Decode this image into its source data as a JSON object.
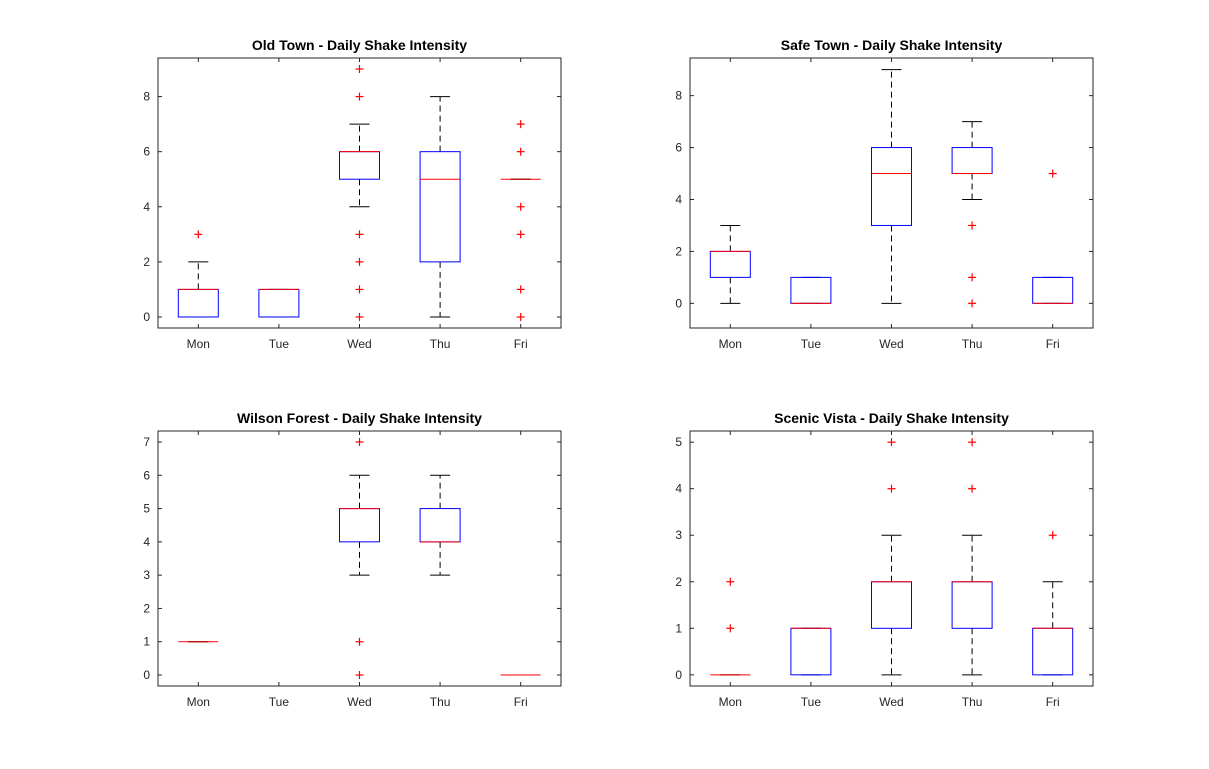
{
  "figure": {
    "colors": {
      "box": "#0000ff",
      "median": "#ff0000",
      "outlier": "#ff0000",
      "whisker": "#000000",
      "axes": "#262626",
      "background": "#ffffff"
    }
  },
  "chart_data": [
    {
      "type": "boxplot",
      "title": "Old Town - Daily Shake Intensity",
      "xlabel": "",
      "ylabel": "",
      "categories": [
        "Mon",
        "Tue",
        "Wed",
        "Thu",
        "Fri"
      ],
      "ylim": [
        -0.4,
        9.4
      ],
      "yticks": [
        0,
        2,
        4,
        6,
        8
      ],
      "grid": false,
      "boxes": [
        {
          "q1": 0,
          "median": 1,
          "q3": 1,
          "whisker_low": 0,
          "whisker_high": 2,
          "outliers": [
            3
          ]
        },
        {
          "q1": 0,
          "median": 1,
          "q3": 1,
          "whisker_low": 0,
          "whisker_high": 1,
          "outliers": []
        },
        {
          "q1": 5,
          "median": 6,
          "q3": 6,
          "whisker_low": 4,
          "whisker_high": 7,
          "outliers": [
            9,
            8,
            3,
            2,
            1,
            0
          ]
        },
        {
          "q1": 2,
          "median": 5,
          "q3": 6,
          "whisker_low": 0,
          "whisker_high": 8,
          "outliers": []
        },
        {
          "q1": 5,
          "median": 5,
          "q3": 5,
          "whisker_low": 5,
          "whisker_high": 5,
          "outliers": [
            7,
            6,
            4,
            3,
            1,
            0
          ]
        }
      ]
    },
    {
      "type": "boxplot",
      "title": "Safe Town - Daily Shake Intensity",
      "xlabel": "",
      "ylabel": "",
      "categories": [
        "Mon",
        "Tue",
        "Wed",
        "Thu",
        "Fri"
      ],
      "ylim": [
        -0.95,
        9.45
      ],
      "yticks": [
        0,
        2,
        4,
        6,
        8
      ],
      "grid": false,
      "boxes": [
        {
          "q1": 1,
          "median": 2,
          "q3": 2,
          "whisker_low": 0,
          "whisker_high": 3,
          "outliers": []
        },
        {
          "q1": 0,
          "median": 0,
          "q3": 1,
          "whisker_low": 0,
          "whisker_high": 1,
          "outliers": []
        },
        {
          "q1": 3,
          "median": 5,
          "q3": 6,
          "whisker_low": 0,
          "whisker_high": 9,
          "outliers": []
        },
        {
          "q1": 5,
          "median": 5,
          "q3": 6,
          "whisker_low": 4,
          "whisker_high": 7,
          "outliers": [
            3,
            1,
            0
          ]
        },
        {
          "q1": 0,
          "median": 0,
          "q3": 1,
          "whisker_low": 0,
          "whisker_high": 1,
          "outliers": [
            5
          ]
        }
      ]
    },
    {
      "type": "boxplot",
      "title": "Wilson Forest - Daily Shake Intensity",
      "xlabel": "",
      "ylabel": "",
      "categories": [
        "Mon",
        "Tue",
        "Wed",
        "Thu",
        "Fri"
      ],
      "ylim": [
        -0.33,
        7.33
      ],
      "yticks": [
        0,
        1,
        2,
        3,
        4,
        5,
        6,
        7
      ],
      "grid": false,
      "boxes": [
        {
          "q1": 1,
          "median": 1,
          "q3": 1,
          "whisker_low": 1,
          "whisker_high": 1,
          "outliers": []
        },
        null,
        {
          "q1": 4,
          "median": 5,
          "q3": 5,
          "whisker_low": 3,
          "whisker_high": 6,
          "outliers": [
            7,
            1,
            0
          ]
        },
        {
          "q1": 4,
          "median": 4,
          "q3": 5,
          "whisker_low": 3,
          "whisker_high": 6,
          "outliers": []
        },
        {
          "q1": 0,
          "median": 0,
          "q3": 0,
          "whisker_low": 0,
          "whisker_high": 0,
          "outliers": []
        }
      ]
    },
    {
      "type": "boxplot",
      "title": "Scenic Vista - Daily Shake Intensity",
      "xlabel": "",
      "ylabel": "",
      "categories": [
        "Mon",
        "Tue",
        "Wed",
        "Thu",
        "Fri"
      ],
      "ylim": [
        -0.24,
        5.24
      ],
      "yticks": [
        0,
        1,
        2,
        3,
        4,
        5
      ],
      "grid": false,
      "boxes": [
        {
          "q1": 0,
          "median": 0,
          "q3": 0,
          "whisker_low": 0,
          "whisker_high": 0,
          "outliers": [
            2,
            1
          ]
        },
        {
          "q1": 0,
          "median": 1,
          "q3": 1,
          "whisker_low": 0,
          "whisker_high": 1,
          "outliers": []
        },
        {
          "q1": 1,
          "median": 2,
          "q3": 2,
          "whisker_low": 0,
          "whisker_high": 3,
          "outliers": [
            5,
            4
          ]
        },
        {
          "q1": 1,
          "median": 2,
          "q3": 2,
          "whisker_low": 0,
          "whisker_high": 3,
          "outliers": [
            5,
            4
          ]
        },
        {
          "q1": 0,
          "median": 1,
          "q3": 1,
          "whisker_low": 0,
          "whisker_high": 2,
          "outliers": [
            3
          ]
        }
      ]
    }
  ]
}
